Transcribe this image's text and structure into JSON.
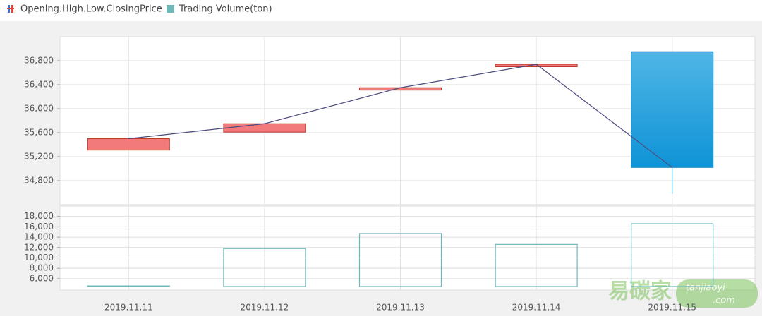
{
  "chart_data": [
    {
      "type": "candlestick",
      "name": "Opening.High.Low.ClosingPrice",
      "open": [
        35310,
        35610,
        36310,
        36700,
        36950
      ],
      "high": [
        35500,
        35750,
        36350,
        36740,
        36950
      ],
      "low": [
        35310,
        35610,
        36310,
        36700,
        34580
      ],
      "close": [
        35500,
        35750,
        36350,
        36740,
        35020
      ],
      "up_color": "#f27a7a",
      "down_color": "#1a9ad8",
      "line_color": "#4b4b7d",
      "ylim": [
        34400,
        37200
      ],
      "yticks": [
        {
          "value": 34800,
          "label": "34,800"
        },
        {
          "value": 35200,
          "label": "35,200"
        },
        {
          "value": 35600,
          "label": "35,600"
        },
        {
          "value": 36000,
          "label": "36,000"
        },
        {
          "value": 36400,
          "label": "36,400"
        },
        {
          "value": 36800,
          "label": "36,800"
        }
      ],
      "grid": true
    },
    {
      "type": "bar",
      "name": "Trading Volume(ton)",
      "categories": [
        "2019.11.11",
        "2019.11.12",
        "2019.11.13",
        "2019.11.14",
        "2019.11.15"
      ],
      "values": [
        4600,
        11800,
        14700,
        12600,
        16600
      ],
      "color": "#6fb8b8",
      "ylim": [
        3800,
        20000
      ],
      "yticks": [
        {
          "value": 6000,
          "label": "6,000"
        },
        {
          "value": 8000,
          "label": "8,000"
        },
        {
          "value": 10000,
          "label": "10,000"
        },
        {
          "value": 12000,
          "label": "12,000"
        },
        {
          "value": 14000,
          "label": "14,000"
        },
        {
          "value": 16000,
          "label": "16,000"
        },
        {
          "value": 18000,
          "label": "18,000"
        }
      ],
      "grid": true
    }
  ],
  "watermark": [
    "易碳家",
    "tanjiaoyi",
    ".com"
  ]
}
